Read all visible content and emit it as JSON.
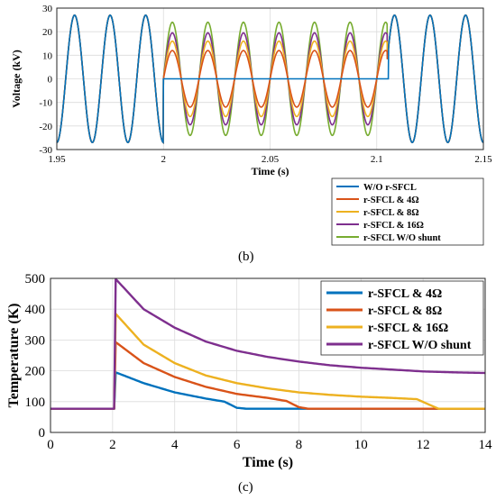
{
  "figure": {
    "panel_b_label": "(b)",
    "panel_c_label": "(c)"
  },
  "chart_data": [
    {
      "type": "line",
      "xlabel": "Time (s)",
      "ylabel": "Voltage (kV)",
      "xlim": [
        1.95,
        2.15
      ],
      "ylim": [
        -30,
        30
      ],
      "x_ticks": [
        "1.95",
        "2",
        "2.05",
        "2.1",
        "2.15"
      ],
      "y_ticks": [
        "-30",
        "-20",
        "-10",
        "0",
        "10",
        "20",
        "30"
      ],
      "grid": true,
      "legend_position": "below-right",
      "fault_interval": [
        2.0,
        2.105
      ],
      "frequency_hz": 60,
      "series": [
        {
          "name": "W/O r-SFCL",
          "color": "#0072BD",
          "amplitude_during_fault": 0,
          "amplitude_normal": 27
        },
        {
          "name": "r-SFCL & 4Ω",
          "color": "#D95319",
          "amplitude_during_fault": 12,
          "amplitude_normal": 27
        },
        {
          "name": "r-SFCL & 8Ω",
          "color": "#EDB120",
          "amplitude_during_fault": 16,
          "amplitude_normal": 27
        },
        {
          "name": "r-SFCL & 16Ω",
          "color": "#7E2F8E",
          "amplitude_during_fault": 19.5,
          "amplitude_normal": 27
        },
        {
          "name": "r-SFCL W/O shunt",
          "color": "#77AC30",
          "amplitude_during_fault": 24,
          "amplitude_normal": 27
        }
      ]
    },
    {
      "type": "line",
      "xlabel": "Time (s)",
      "ylabel": "Temperature (K)",
      "xlim": [
        0,
        14
      ],
      "ylim": [
        0,
        500
      ],
      "x_ticks": [
        "0",
        "2",
        "4",
        "6",
        "8",
        "10",
        "12",
        "14"
      ],
      "y_ticks": [
        "0",
        "100",
        "200",
        "300",
        "400",
        "500"
      ],
      "grid": true,
      "legend_position": "top-right",
      "series": [
        {
          "name": "r-SFCL & 4Ω",
          "color": "#0072BD",
          "x": [
            0,
            2.05,
            2.1,
            3,
            4,
            5,
            5.6,
            6,
            6.3,
            7,
            14
          ],
          "y": [
            77,
            77,
            195,
            160,
            130,
            110,
            100,
            80,
            77,
            77,
            77
          ]
        },
        {
          "name": "r-SFCL & 8Ω",
          "color": "#D95319",
          "x": [
            0,
            2.05,
            2.1,
            3,
            4,
            5,
            6,
            7,
            7.6,
            8,
            8.3,
            14
          ],
          "y": [
            77,
            77,
            293,
            225,
            180,
            148,
            125,
            112,
            102,
            82,
            77,
            77
          ]
        },
        {
          "name": "r-SFCL & 16Ω",
          "color": "#EDB120",
          "x": [
            0,
            2.05,
            2.1,
            3,
            4,
            5,
            6,
            7,
            8,
            9,
            10,
            11,
            11.8,
            12.2,
            12.5,
            14
          ],
          "y": [
            77,
            77,
            385,
            285,
            225,
            185,
            160,
            143,
            130,
            122,
            116,
            112,
            108,
            90,
            77,
            77
          ]
        },
        {
          "name": "r-SFCL W/O shunt",
          "color": "#7E2F8E",
          "x": [
            0,
            2.05,
            2.1,
            3,
            4,
            5,
            6,
            7,
            8,
            9,
            10,
            11,
            12,
            13,
            14
          ],
          "y": [
            77,
            77,
            498,
            400,
            340,
            295,
            265,
            245,
            230,
            218,
            210,
            204,
            198,
            195,
            193
          ]
        }
      ]
    }
  ]
}
